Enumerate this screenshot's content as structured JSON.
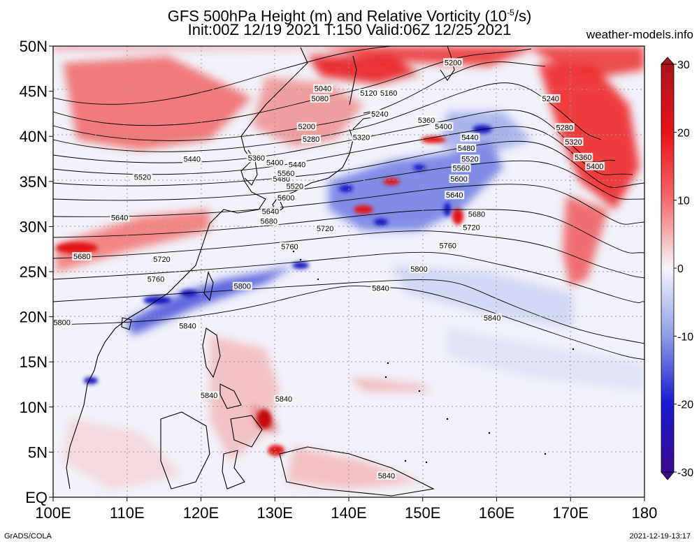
{
  "header": {
    "title_line1": "GFS 500hPa Height (m) and Relative Vorticity (10",
    "title_exp": "-5",
    "title_line1_end": "/s)",
    "title_line2": "Init:00Z 12/19 2021 T:150 Valid:06Z 12/25 2021",
    "site": "weather-models.info"
  },
  "footer": {
    "credit": "GrADS/COLA",
    "timestamp": "2021-12-19-13:17"
  },
  "map": {
    "lon_labels": [
      "100E",
      "110E",
      "120E",
      "130E",
      "140E",
      "150E",
      "160E",
      "170E",
      "180"
    ],
    "lat_labels": [
      "EQ",
      "5N",
      "10N",
      "15N",
      "20N",
      "25N",
      "30N",
      "35N",
      "40N",
      "45N",
      "50N"
    ],
    "colorbar_labels": [
      "30",
      "20",
      "10",
      "0",
      "-10",
      "-20",
      "-30"
    ],
    "colors": {
      "strong_pos": "#e8141c",
      "pos": "#f46a6a",
      "weak_pos": "#fbd0d0",
      "neutral": "#f4f4fa",
      "weak_neg": "#d0d6f2",
      "neg": "#6c7fe0",
      "strong_neg": "#1a1ad0"
    },
    "contour_labels": [
      {
        "text": "5040",
        "lon": 136.5,
        "lat": 45.3
      },
      {
        "text": "5080",
        "lon": 136.1,
        "lat": 44.2
      },
      {
        "text": "5120",
        "lon": 142.7,
        "lat": 44.8
      },
      {
        "text": "5160",
        "lon": 145.4,
        "lat": 44.8
      },
      {
        "text": "5240",
        "lon": 144.2,
        "lat": 42.5
      },
      {
        "text": "5200",
        "lon": 134.3,
        "lat": 41.1
      },
      {
        "text": "5280",
        "lon": 134.9,
        "lat": 39.7
      },
      {
        "text": "5320",
        "lon": 141.7,
        "lat": 39.9
      },
      {
        "text": "5360",
        "lon": 150.5,
        "lat": 41.8
      },
      {
        "text": "5400",
        "lon": 152.8,
        "lat": 41.1
      },
      {
        "text": "5440",
        "lon": 156.4,
        "lat": 39.9
      },
      {
        "text": "5480",
        "lon": 155.9,
        "lat": 38.7
      },
      {
        "text": "5520",
        "lon": 156.4,
        "lat": 37.5
      },
      {
        "text": "5560",
        "lon": 155.2,
        "lat": 36.5
      },
      {
        "text": "5600",
        "lon": 154.9,
        "lat": 35.3
      },
      {
        "text": "5640",
        "lon": 154.3,
        "lat": 33.5
      },
      {
        "text": "5680",
        "lon": 157.3,
        "lat": 31.4
      },
      {
        "text": "5720",
        "lon": 156.6,
        "lat": 29.9
      },
      {
        "text": "5760",
        "lon": 153.4,
        "lat": 27.9
      },
      {
        "text": "5800",
        "lon": 149.5,
        "lat": 25.3
      },
      {
        "text": "5840",
        "lon": 144.3,
        "lat": 23.2
      },
      {
        "text": "5840",
        "lon": 159.4,
        "lat": 19.9
      },
      {
        "text": "5200",
        "lon": 154.1,
        "lat": 48.2
      },
      {
        "text": "5240",
        "lon": 167.3,
        "lat": 44.2
      },
      {
        "text": "5280",
        "lon": 169.2,
        "lat": 41.0
      },
      {
        "text": "5320",
        "lon": 170.4,
        "lat": 39.4
      },
      {
        "text": "5360",
        "lon": 171.7,
        "lat": 37.7
      },
      {
        "text": "5400",
        "lon": 173.3,
        "lat": 36.7
      },
      {
        "text": "5440",
        "lon": 118.8,
        "lat": 37.5
      },
      {
        "text": "5520",
        "lon": 112.1,
        "lat": 35.5
      },
      {
        "text": "5360",
        "lon": 127.5,
        "lat": 37.6
      },
      {
        "text": "5400",
        "lon": 130.0,
        "lat": 37.1
      },
      {
        "text": "5440",
        "lon": 133.0,
        "lat": 36.9
      },
      {
        "text": "5480",
        "lon": 130.9,
        "lat": 35.3
      },
      {
        "text": "5520",
        "lon": 132.7,
        "lat": 34.5
      },
      {
        "text": "5560",
        "lon": 131.5,
        "lat": 35.9
      },
      {
        "text": "5600",
        "lon": 131.5,
        "lat": 33.2
      },
      {
        "text": "5640",
        "lon": 129.4,
        "lat": 31.7
      },
      {
        "text": "5680",
        "lon": 129.2,
        "lat": 30.6
      },
      {
        "text": "5720",
        "lon": 136.8,
        "lat": 29.8
      },
      {
        "text": "5760",
        "lon": 132.0,
        "lat": 27.8
      },
      {
        "text": "5800",
        "lon": 125.6,
        "lat": 23.4
      },
      {
        "text": "5640",
        "lon": 109.0,
        "lat": 31.0
      },
      {
        "text": "5680",
        "lon": 103.9,
        "lat": 26.7
      },
      {
        "text": "5720",
        "lon": 114.7,
        "lat": 26.4
      },
      {
        "text": "5760",
        "lon": 113.9,
        "lat": 24.2
      },
      {
        "text": "5800",
        "lon": 101.2,
        "lat": 19.4
      },
      {
        "text": "5840",
        "lon": 118.2,
        "lat": 19.0
      },
      {
        "text": "5840",
        "lon": 121.1,
        "lat": 11.3
      },
      {
        "text": "5840",
        "lon": 131.2,
        "lat": 10.9
      },
      {
        "text": "5840",
        "lon": 145.1,
        "lat": 2.4
      }
    ]
  }
}
